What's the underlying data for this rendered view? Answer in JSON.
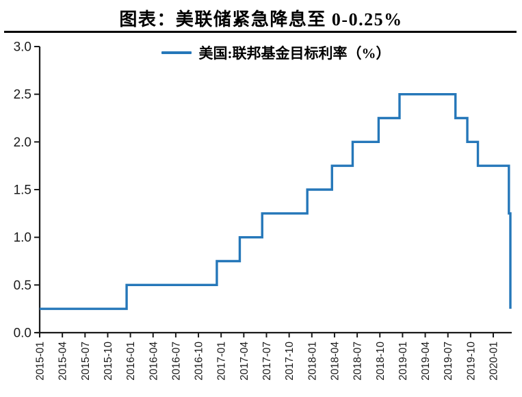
{
  "title": "图表：美联储紧急降息至 0-0.25%",
  "legend": {
    "label": "美国:联邦基金目标利率（%）"
  },
  "colors": {
    "line": "#2577B9",
    "axis": "#1a1a1a",
    "tick_label": "#1a1a1a",
    "title": "#000000",
    "divider": "#000000",
    "background": "#ffffff"
  },
  "chart_data": {
    "type": "line",
    "style": "step-after",
    "title": "图表：美联储紧急降息至 0-0.25%",
    "xlabel": "",
    "ylabel": "",
    "ylim": [
      0.0,
      3.0
    ],
    "y_tick_step": 0.5,
    "grid": false,
    "legend_position": "top-center",
    "series": [
      {
        "name": "美国:联邦基金目标利率（%）",
        "unit": "%",
        "points": [
          {
            "date": "2015-01-01",
            "value": 0.25
          },
          {
            "date": "2015-12-16",
            "value": 0.5
          },
          {
            "date": "2016-12-14",
            "value": 0.75
          },
          {
            "date": "2017-03-15",
            "value": 1.0
          },
          {
            "date": "2017-06-14",
            "value": 1.25
          },
          {
            "date": "2017-12-13",
            "value": 1.5
          },
          {
            "date": "2018-03-21",
            "value": 1.75
          },
          {
            "date": "2018-06-13",
            "value": 2.0
          },
          {
            "date": "2018-09-26",
            "value": 2.25
          },
          {
            "date": "2018-12-19",
            "value": 2.5
          },
          {
            "date": "2019-07-31",
            "value": 2.25
          },
          {
            "date": "2019-09-18",
            "value": 2.0
          },
          {
            "date": "2019-10-30",
            "value": 1.75
          },
          {
            "date": "2020-03-03",
            "value": 1.25
          },
          {
            "date": "2020-03-15",
            "value": 0.25
          }
        ]
      }
    ],
    "x_ticks": [
      "2015-01",
      "2015-04",
      "2015-07",
      "2015-10",
      "2016-01",
      "2016-04",
      "2016-07",
      "2016-10",
      "2017-01",
      "2017-04",
      "2017-07",
      "2017-10",
      "2018-01",
      "2018-04",
      "2018-07",
      "2018-10",
      "2019-01",
      "2019-04",
      "2019-07",
      "2019-10",
      "2020-01"
    ],
    "y_ticks": [
      "0.0",
      "0.5",
      "1.0",
      "1.5",
      "2.0",
      "2.5",
      "3.0"
    ]
  }
}
